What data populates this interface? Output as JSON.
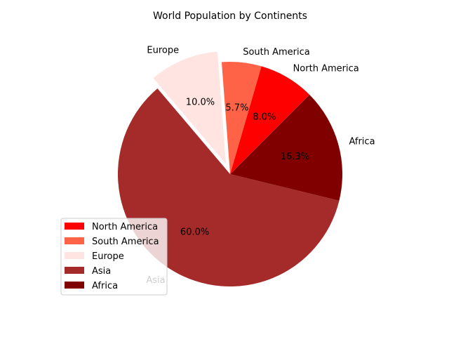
{
  "chart_data": {
    "type": "pie",
    "title": "World Population by Continents",
    "startangle_deg": 45,
    "direction": "counterclockwise",
    "legend_position": "lower-left",
    "slices": [
      {
        "label": "North America",
        "value": 8.0,
        "pct_text": "8.0%",
        "color": "#ff0000",
        "explode": 0,
        "label_color": "#000000"
      },
      {
        "label": "South America",
        "value": 5.7,
        "pct_text": "5.7%",
        "color": "#ff6347",
        "explode": 0,
        "label_color": "#000000"
      },
      {
        "label": "Europe",
        "value": 10.0,
        "pct_text": "10.0%",
        "color": "#ffe4e1",
        "explode": 0.1,
        "label_color": "#000000"
      },
      {
        "label": "Asia",
        "value": 60.0,
        "pct_text": "60.0%",
        "color": "#a52a2a",
        "explode": 0,
        "label_color": "#ffffff"
      },
      {
        "label": "Africa",
        "value": 16.3,
        "pct_text": "16.3%",
        "color": "#800000",
        "explode": 0,
        "label_color": "#000000"
      }
    ]
  }
}
